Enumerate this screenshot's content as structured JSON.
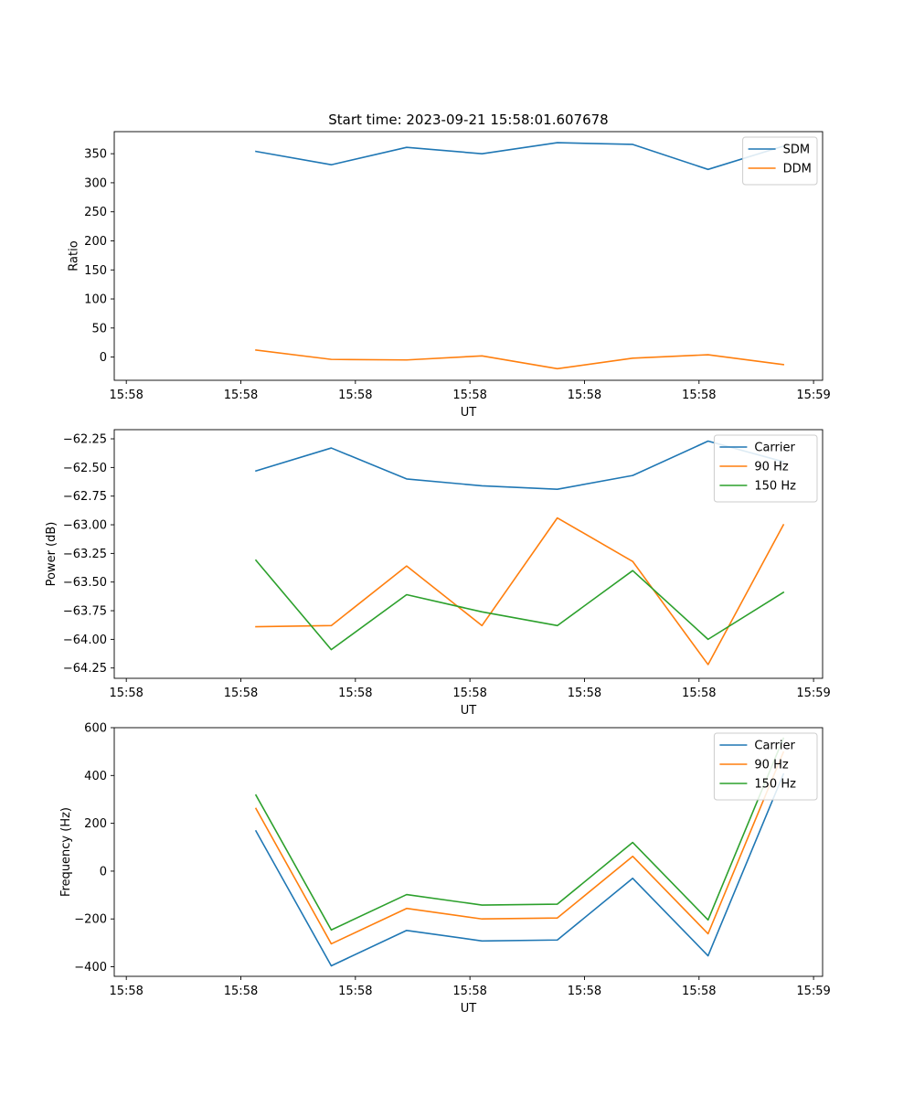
{
  "figure_title": "Start time: 2023-09-21 15:58:01.607678",
  "x_tick_labels": [
    "15:58",
    "15:58",
    "15:58",
    "15:58",
    "15:58",
    "15:58",
    "15:59"
  ],
  "chart_data": [
    {
      "type": "line",
      "title": "Start time: 2023-09-21 15:58:01.607678",
      "xlabel": "UT",
      "ylabel": "Ratio",
      "ylim": [
        -40,
        388
      ],
      "y_ticks": [
        0,
        50,
        100,
        150,
        200,
        250,
        300,
        350
      ],
      "y_tick_labels": [
        "0",
        "50",
        "100",
        "150",
        "200",
        "250",
        "300",
        "350"
      ],
      "x": [
        1,
        2,
        3,
        4,
        5,
        6,
        7,
        8
      ],
      "xlim": [
        -0.88,
        8.52
      ],
      "x_ticks": [
        -0.72,
        0.8,
        2.32,
        3.84,
        5.36,
        6.88,
        8.4
      ],
      "legend": "top-right",
      "series": [
        {
          "name": "SDM",
          "color": "#1f77b4",
          "values": [
            354,
            331,
            361,
            350,
            369,
            366,
            323,
            363
          ]
        },
        {
          "name": "DDM",
          "color": "#ff7f0e",
          "values": [
            12,
            -4,
            -5,
            2,
            -20,
            -2,
            4,
            -13
          ]
        }
      ]
    },
    {
      "type": "line",
      "xlabel": "UT",
      "ylabel": "Power (dB)",
      "ylim": [
        -64.34,
        -62.17
      ],
      "y_ticks": [
        -64.25,
        -64.0,
        -63.75,
        -63.5,
        -63.25,
        -63.0,
        -62.75,
        -62.5,
        -62.25
      ],
      "y_tick_labels": [
        "−64.25",
        "−64.00",
        "−63.75",
        "−63.50",
        "−63.25",
        "−63.00",
        "−62.75",
        "−62.50",
        "−62.25"
      ],
      "x": [
        1,
        2,
        3,
        4,
        5,
        6,
        7,
        8
      ],
      "xlim": [
        -0.88,
        8.52
      ],
      "x_ticks": [
        -0.72,
        0.8,
        2.32,
        3.84,
        5.36,
        6.88,
        8.4
      ],
      "legend": "top-right",
      "series": [
        {
          "name": "Carrier",
          "color": "#1f77b4",
          "values": [
            -62.53,
            -62.33,
            -62.6,
            -62.66,
            -62.69,
            -62.57,
            -62.27,
            -62.45
          ]
        },
        {
          "name": "90 Hz",
          "color": "#ff7f0e",
          "values": [
            -63.89,
            -63.88,
            -63.36,
            -63.88,
            -62.94,
            -63.32,
            -64.22,
            -63.0
          ]
        },
        {
          "name": "150 Hz",
          "color": "#2ca02c",
          "values": [
            -63.31,
            -64.09,
            -63.61,
            -63.76,
            -63.88,
            -63.4,
            -64.0,
            -63.59
          ]
        }
      ]
    },
    {
      "type": "line",
      "xlabel": "UT",
      "ylabel": "Frequency (Hz)",
      "ylim": [
        -440,
        600
      ],
      "y_ticks": [
        -400,
        -200,
        0,
        200,
        400,
        600
      ],
      "y_tick_labels": [
        "−400",
        "−200",
        "0",
        "200",
        "400",
        "600"
      ],
      "x": [
        1,
        2,
        3,
        4,
        5,
        6,
        7,
        8
      ],
      "xlim": [
        -0.88,
        8.52
      ],
      "x_ticks": [
        -0.72,
        0.8,
        2.32,
        3.84,
        5.36,
        6.88,
        8.4
      ],
      "legend": "top-right",
      "series": [
        {
          "name": "Carrier",
          "color": "#1f77b4",
          "values": [
            168,
            -396,
            -248,
            -292,
            -288,
            -30,
            -354,
            406
          ]
        },
        {
          "name": "90 Hz",
          "color": "#ff7f0e",
          "values": [
            262,
            -304,
            -156,
            -200,
            -196,
            62,
            -262,
            498
          ]
        },
        {
          "name": "150 Hz",
          "color": "#2ca02c",
          "values": [
            318,
            -246,
            -98,
            -142,
            -138,
            120,
            -204,
            556
          ]
        }
      ]
    }
  ]
}
